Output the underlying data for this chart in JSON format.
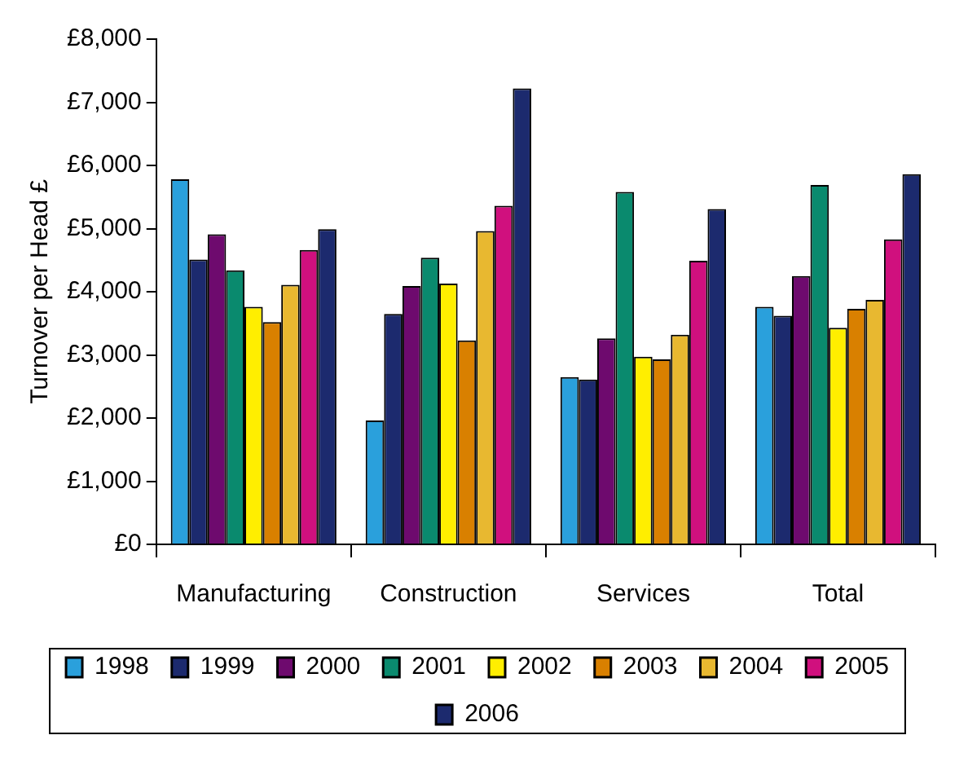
{
  "chart_data": {
    "type": "bar",
    "ylabel": "Turnover per Head £",
    "categories": [
      "Manufacturing",
      "Construction",
      "Services",
      "Total"
    ],
    "series": [
      {
        "name": "1998",
        "color": "#2aa0dc",
        "values": [
          5780,
          1960,
          2650,
          3760
        ]
      },
      {
        "name": "1999",
        "color": "#1c2a6e",
        "values": [
          4510,
          3650,
          2610,
          3620
        ]
      },
      {
        "name": "2000",
        "color": "#6e0a6e",
        "values": [
          4910,
          4090,
          3260,
          4250
        ]
      },
      {
        "name": "2001",
        "color": "#0a8a6e",
        "values": [
          4340,
          4540,
          5580,
          5690
        ]
      },
      {
        "name": "2002",
        "color": "#ffee00",
        "values": [
          3760,
          4130,
          2970,
          3430
        ]
      },
      {
        "name": "2003",
        "color": "#d98000",
        "values": [
          3520,
          3230,
          2930,
          3730
        ]
      },
      {
        "name": "2004",
        "color": "#e8b830",
        "values": [
          4110,
          4960,
          3320,
          3870
        ]
      },
      {
        "name": "2005",
        "color": "#d0107e",
        "values": [
          4660,
          5360,
          4490,
          4830
        ]
      },
      {
        "name": "2006",
        "color": "#1c2a6e",
        "values": [
          4990,
          7220,
          5310,
          5860
        ]
      }
    ],
    "ylim": [
      0,
      8000
    ],
    "yticks": [
      {
        "value": 0,
        "label": "£0"
      },
      {
        "value": 1000,
        "label": "£1,000"
      },
      {
        "value": 2000,
        "label": "£2,000"
      },
      {
        "value": 3000,
        "label": "£3,000"
      },
      {
        "value": 4000,
        "label": "£4,000"
      },
      {
        "value": 5000,
        "label": "£5,000"
      },
      {
        "value": 6000,
        "label": "£6,000"
      },
      {
        "value": 7000,
        "label": "£7,000"
      },
      {
        "value": 8000,
        "label": "£8,000"
      }
    ],
    "grid": false,
    "legend": "bottom"
  }
}
